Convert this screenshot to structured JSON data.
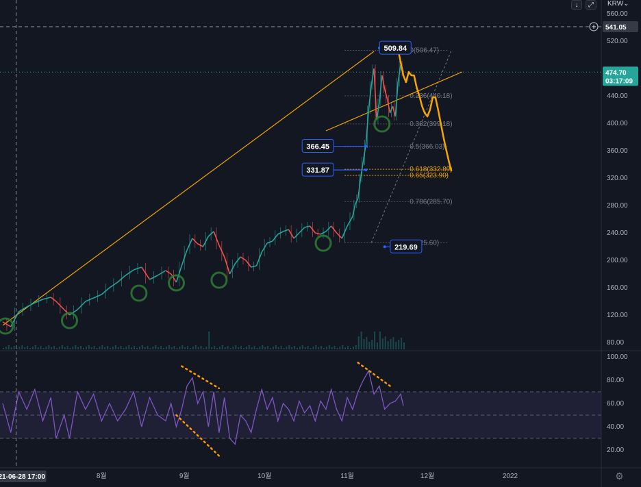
{
  "toolbar": {
    "down_icon": "↓",
    "fit_icon": "⤢",
    "currency": "KRW",
    "currency_chevron": "⌄",
    "settings_icon": "⚙"
  },
  "price_axis": {
    "ticks": [
      560,
      520,
      440,
      400,
      360,
      320,
      280,
      240,
      200,
      160,
      120,
      80
    ],
    "tick_labels": [
      "560.00",
      "520.00",
      "440.00",
      "400.00",
      "360.00",
      "320.00",
      "280.00",
      "240.00",
      "200.00",
      "160.00",
      "120.00",
      "80.00"
    ],
    "crosshair_value": "541.05",
    "current_price": "474.70",
    "countdown": "03:17:09",
    "current_color": "#26a69a"
  },
  "rsi_axis": {
    "ticks": [
      100,
      80,
      60,
      40,
      20
    ],
    "tick_labels": [
      "100.00",
      "80.00",
      "60.00",
      "40.00",
      "20.00"
    ],
    "upper_band": 70,
    "lower_band": 30,
    "mid": 50,
    "line_color": "#7e57c2"
  },
  "time_axis": {
    "labels": [
      {
        "text": "8월",
        "day": 37
      },
      {
        "text": "9월",
        "day": 68
      },
      {
        "text": "10월",
        "day": 98
      },
      {
        "text": "11월",
        "day": 129
      },
      {
        "text": "12월",
        "day": 159
      },
      {
        "text": "2022",
        "day": 190
      }
    ],
    "crosshair_label": "21-06-28  17:00",
    "crosshair_day": 5
  },
  "fibonacci": {
    "color_gray": "#787b86",
    "color_orange": "#f0a500",
    "levels": [
      {
        "label": "0(506.47)",
        "price": 506.47,
        "highlight": false
      },
      {
        "label": "0.236(440.18)",
        "price": 440.18,
        "highlight": false
      },
      {
        "label": "0.382(399.18)",
        "price": 399.18,
        "highlight": false
      },
      {
        "label": "0.5(366.03)",
        "price": 366.03,
        "highlight": false
      },
      {
        "label": "0.618(332.89)",
        "price": 332.89,
        "highlight": true
      },
      {
        "label": "0.65(323.90)",
        "price": 323.9,
        "highlight": true
      },
      {
        "label": "0.786(285.70)",
        "price": 285.7,
        "highlight": false
      },
      {
        "label": "1(225.60)",
        "price": 225.6,
        "highlight": false
      }
    ]
  },
  "price_labels": [
    {
      "text": "509.84",
      "price": 509.84,
      "day": 147,
      "anchor_day": 141,
      "anchor_price": 509.84
    },
    {
      "text": "366.45",
      "price": 366.45,
      "day": 118,
      "anchor_day": 136,
      "anchor_price": 366.45
    },
    {
      "text": "331.87",
      "price": 331.87,
      "day": 118,
      "anchor_day": 136,
      "anchor_price": 331.87
    },
    {
      "text": "219.69",
      "price": 219.69,
      "day": 151,
      "anchor_day": 143,
      "anchor_price": 219.69
    }
  ],
  "chart_data": {
    "type": "line",
    "title": "",
    "x_unit": "days since 2021-06-23",
    "price_range": [
      70,
      575
    ],
    "price_series": [
      [
        0,
        110
      ],
      [
        3,
        103
      ],
      [
        6,
        125
      ],
      [
        9,
        132
      ],
      [
        12,
        138
      ],
      [
        15,
        143
      ],
      [
        18,
        146
      ],
      [
        20,
        140
      ],
      [
        23,
        128
      ],
      [
        25,
        120
      ],
      [
        28,
        128
      ],
      [
        31,
        140
      ],
      [
        34,
        145
      ],
      [
        37,
        150
      ],
      [
        40,
        160
      ],
      [
        43,
        168
      ],
      [
        46,
        178
      ],
      [
        49,
        186
      ],
      [
        52,
        190
      ],
      [
        55,
        172
      ],
      [
        58,
        178
      ],
      [
        61,
        185
      ],
      [
        63,
        180
      ],
      [
        65,
        168
      ],
      [
        67,
        192
      ],
      [
        69,
        215
      ],
      [
        71,
        232
      ],
      [
        73,
        224
      ],
      [
        75,
        220
      ],
      [
        77,
        235
      ],
      [
        79,
        242
      ],
      [
        81,
        222
      ],
      [
        83,
        205
      ],
      [
        85,
        180
      ],
      [
        87,
        195
      ],
      [
        89,
        205
      ],
      [
        91,
        200
      ],
      [
        93,
        190
      ],
      [
        95,
        192
      ],
      [
        97,
        212
      ],
      [
        99,
        225
      ],
      [
        101,
        228
      ],
      [
        103,
        238
      ],
      [
        105,
        242
      ],
      [
        107,
        245
      ],
      [
        109,
        232
      ],
      [
        111,
        240
      ],
      [
        113,
        248
      ],
      [
        115,
        250
      ],
      [
        117,
        240
      ],
      [
        119,
        238
      ],
      [
        121,
        242
      ],
      [
        123,
        250
      ],
      [
        125,
        240
      ],
      [
        127,
        232
      ],
      [
        129,
        250
      ],
      [
        131,
        264
      ],
      [
        132,
        282
      ],
      [
        133,
        290
      ],
      [
        134,
        320
      ],
      [
        135,
        345
      ],
      [
        136,
        370
      ],
      [
        137,
        420
      ],
      [
        138,
        455
      ],
      [
        139,
        480
      ],
      [
        140,
        405
      ],
      [
        141,
        430
      ],
      [
        142,
        470
      ],
      [
        143,
        450
      ],
      [
        144,
        435
      ],
      [
        145,
        415
      ],
      [
        146,
        425
      ],
      [
        147,
        410
      ],
      [
        148,
        460
      ],
      [
        149,
        485
      ],
      [
        150,
        474.7
      ]
    ],
    "volume_spikes_days": [
      77,
      134,
      139,
      141
    ],
    "rsi_series": [
      [
        0,
        60
      ],
      [
        3,
        35
      ],
      [
        6,
        70
      ],
      [
        9,
        55
      ],
      [
        12,
        72
      ],
      [
        15,
        45
      ],
      [
        18,
        65
      ],
      [
        20,
        30
      ],
      [
        23,
        50
      ],
      [
        25,
        30
      ],
      [
        28,
        70
      ],
      [
        31,
        55
      ],
      [
        34,
        68
      ],
      [
        37,
        45
      ],
      [
        40,
        60
      ],
      [
        43,
        45
      ],
      [
        46,
        55
      ],
      [
        49,
        70
      ],
      [
        52,
        40
      ],
      [
        55,
        65
      ],
      [
        58,
        50
      ],
      [
        61,
        45
      ],
      [
        63,
        60
      ],
      [
        65,
        40
      ],
      [
        67,
        55
      ],
      [
        69,
        75
      ],
      [
        71,
        82
      ],
      [
        73,
        60
      ],
      [
        75,
        70
      ],
      [
        77,
        40
      ],
      [
        79,
        70
      ],
      [
        81,
        35
      ],
      [
        83,
        65
      ],
      [
        85,
        30
      ],
      [
        87,
        25
      ],
      [
        89,
        50
      ],
      [
        91,
        45
      ],
      [
        93,
        35
      ],
      [
        95,
        55
      ],
      [
        97,
        72
      ],
      [
        99,
        55
      ],
      [
        101,
        65
      ],
      [
        103,
        45
      ],
      [
        105,
        60
      ],
      [
        107,
        55
      ],
      [
        109,
        45
      ],
      [
        111,
        62
      ],
      [
        113,
        52
      ],
      [
        115,
        58
      ],
      [
        117,
        45
      ],
      [
        119,
        62
      ],
      [
        121,
        55
      ],
      [
        123,
        72
      ],
      [
        125,
        55
      ],
      [
        127,
        45
      ],
      [
        129,
        65
      ],
      [
        131,
        55
      ],
      [
        133,
        70
      ],
      [
        135,
        80
      ],
      [
        137,
        88
      ],
      [
        139,
        68
      ],
      [
        141,
        75
      ],
      [
        143,
        55
      ],
      [
        145,
        60
      ],
      [
        147,
        62
      ],
      [
        149,
        68
      ],
      [
        150,
        58
      ]
    ],
    "trendlines": [
      {
        "from": [
          0,
          105
        ],
        "to": [
          139,
          505
        ],
        "color": "#f0a500"
      },
      {
        "from": [
          121,
          389
        ],
        "to": [
          172,
          475
        ],
        "color": "#f0a500"
      }
    ],
    "forecast_path": [
      [
        148,
        508
      ],
      [
        150,
        470
      ],
      [
        151,
        460
      ],
      [
        152,
        475
      ],
      [
        153,
        470
      ],
      [
        154,
        470
      ],
      [
        155,
        452
      ],
      [
        156,
        440
      ],
      [
        157,
        425
      ],
      [
        158,
        415
      ],
      [
        159,
        410
      ],
      [
        160,
        420
      ],
      [
        161,
        438
      ],
      [
        162,
        438
      ],
      [
        163,
        420
      ],
      [
        164,
        400
      ],
      [
        165,
        380
      ],
      [
        166,
        362
      ],
      [
        167,
        345
      ],
      [
        168,
        330
      ]
    ],
    "support_circles": [
      {
        "day": 1,
        "price": 104
      },
      {
        "day": 25,
        "price": 112
      },
      {
        "day": 51,
        "price": 152
      },
      {
        "day": 65,
        "price": 167
      },
      {
        "day": 81,
        "price": 171
      },
      {
        "day": 120,
        "price": 225
      },
      {
        "day": 142,
        "price": 399
      }
    ],
    "rsi_divergences": [
      {
        "from": [
          67,
          92
        ],
        "to": [
          81,
          73
        ],
        "color": "#ff9800"
      },
      {
        "from": [
          65,
          50
        ],
        "to": [
          81,
          15
        ],
        "color": "#ff9800"
      },
      {
        "from": [
          133,
          95
        ],
        "to": [
          145,
          75
        ],
        "color": "#ff9800"
      }
    ]
  }
}
